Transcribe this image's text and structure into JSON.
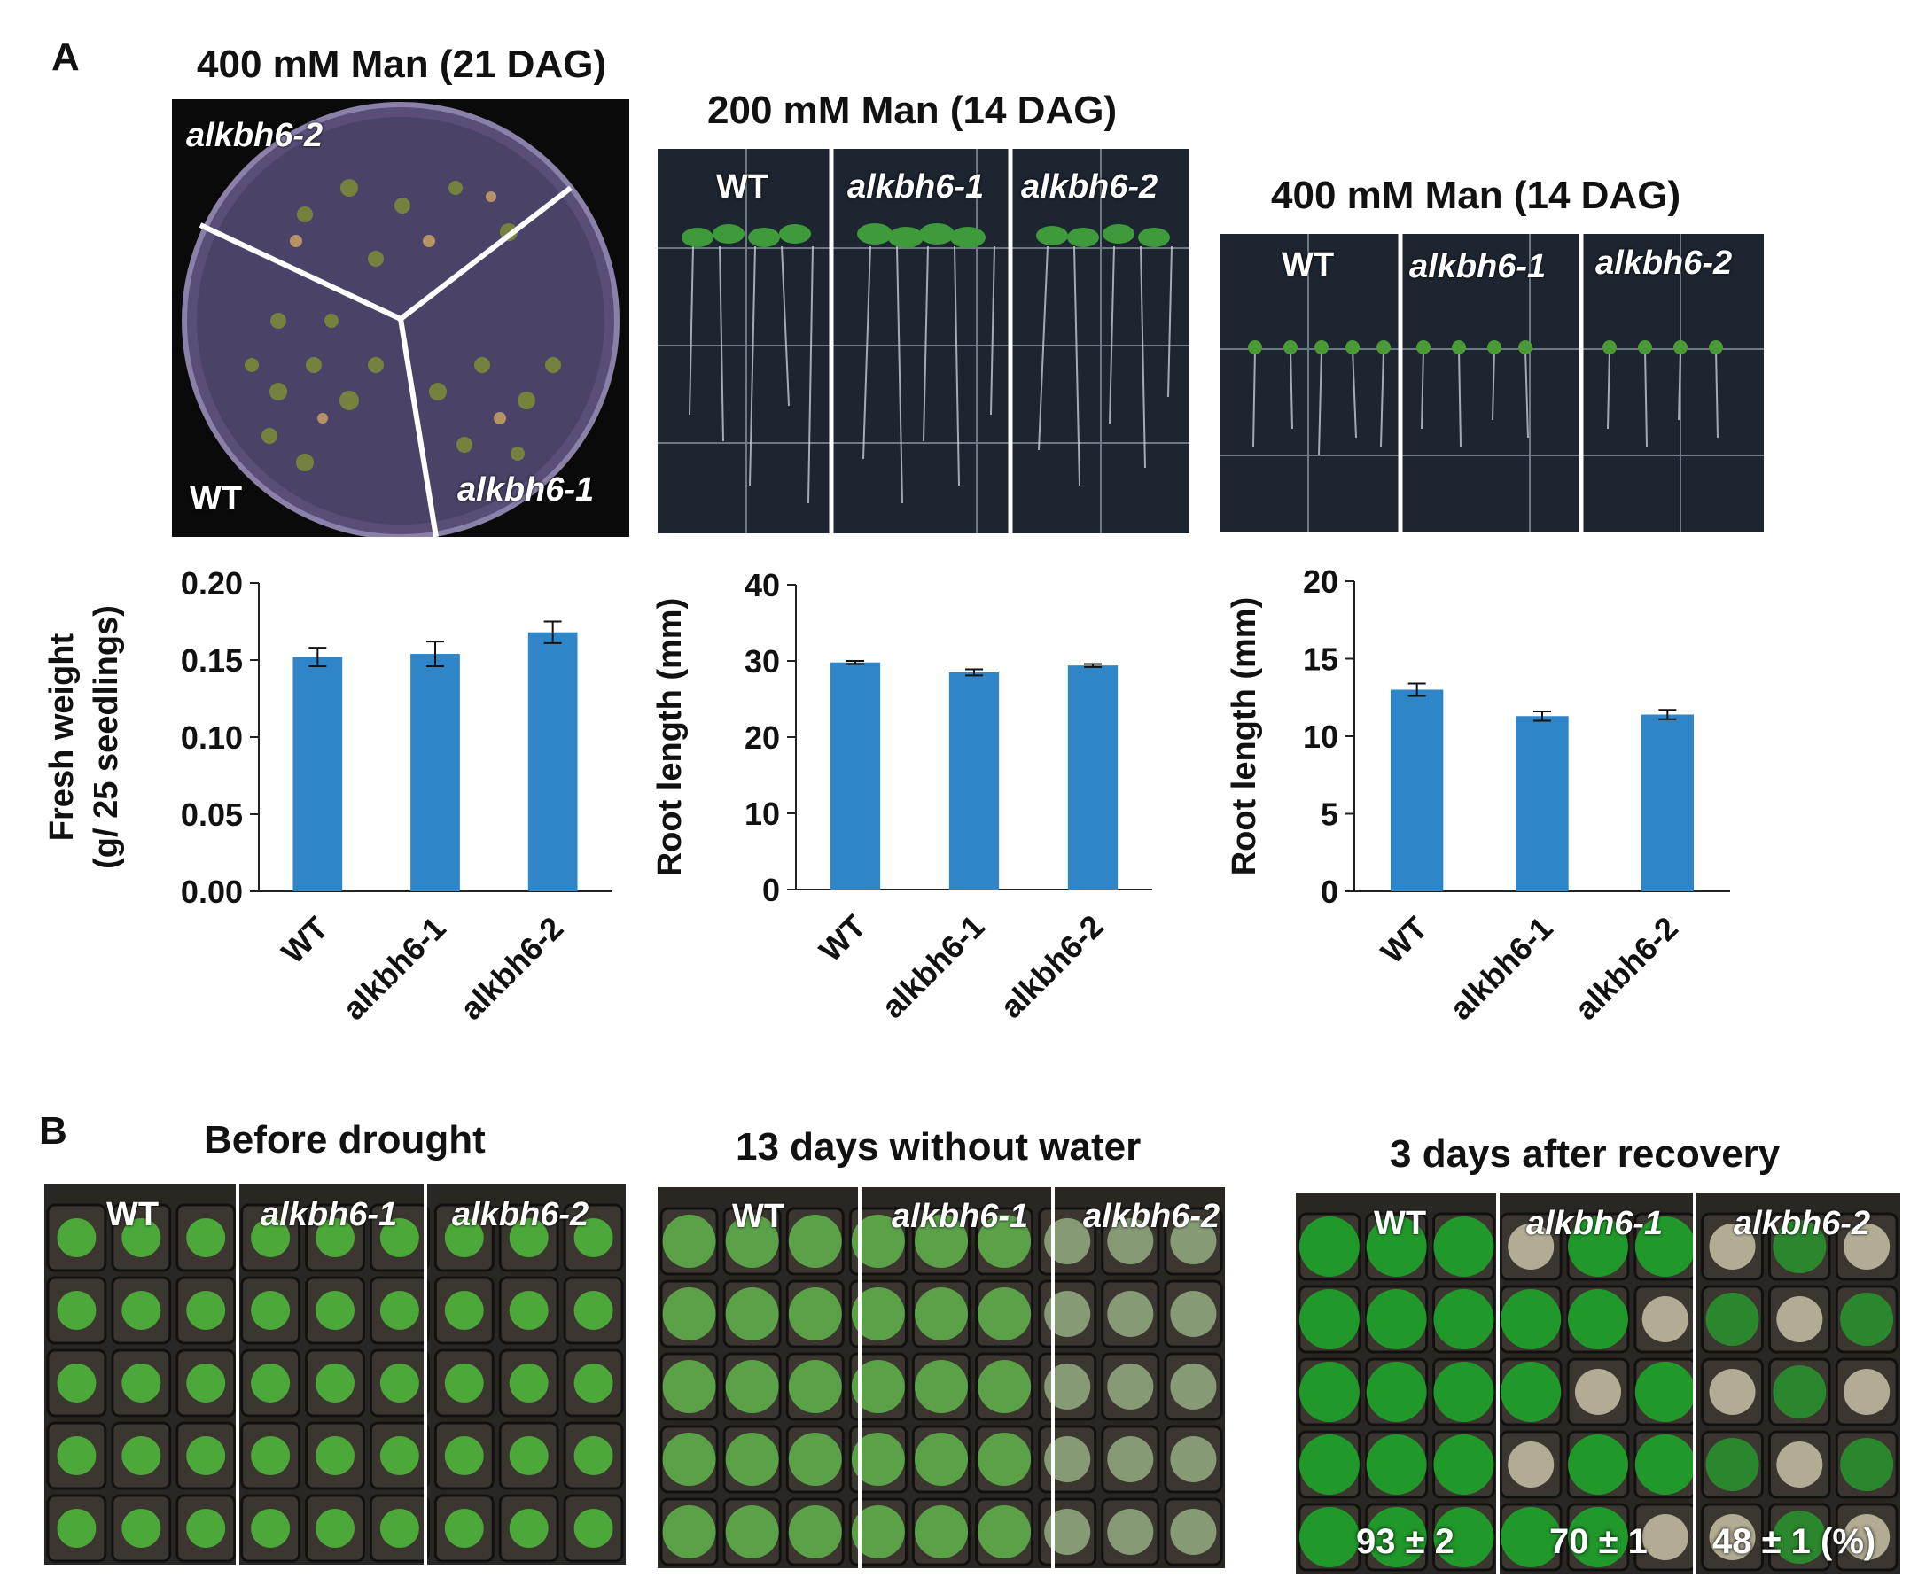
{
  "panel_a": {
    "letter": "A",
    "photos": [
      {
        "title": "400 mM Man (21 DAG)",
        "labels": [
          "alkbh6-2",
          "WT",
          "alkbh6-1"
        ]
      },
      {
        "title": "200 mM Man (14 DAG)",
        "labels": [
          "WT",
          "alkbh6-1",
          "alkbh6-2"
        ]
      },
      {
        "title": "400 mM Man (14 DAG)",
        "labels": [
          "WT",
          "alkbh6-1",
          "alkbh6-2"
        ]
      }
    ]
  },
  "chart_data": [
    {
      "type": "bar",
      "categories": [
        "WT",
        "alkbh6-1",
        "alkbh6-2"
      ],
      "values": [
        0.152,
        0.154,
        0.168
      ],
      "errors": [
        0.006,
        0.008,
        0.007
      ],
      "ylabel": "Fresh weight\n(g/ 25 seedlings)",
      "ylabel_lines": [
        "Fresh weight",
        "(g/ 25 seedlings)"
      ],
      "ylim": [
        0,
        0.2
      ],
      "yticks": [
        "0.00",
        "0.05",
        "0.10",
        "0.15",
        "0.20"
      ],
      "color": "#2e86c8"
    },
    {
      "type": "bar",
      "categories": [
        "WT",
        "alkbh6-1",
        "alkbh6-2"
      ],
      "values": [
        29.8,
        28.5,
        29.4
      ],
      "errors": [
        0.2,
        0.4,
        0.2
      ],
      "ylabel": "Root length (mm)",
      "ylabel_lines": [
        "Root length (mm)"
      ],
      "ylim": [
        0,
        40
      ],
      "yticks": [
        "0",
        "10",
        "20",
        "30",
        "40"
      ],
      "color": "#2e86c8"
    },
    {
      "type": "bar",
      "categories": [
        "WT",
        "alkbh6-1",
        "alkbh6-2"
      ],
      "values": [
        13.0,
        11.3,
        11.4
      ],
      "errors": [
        0.4,
        0.3,
        0.3
      ],
      "ylabel": "Root length (mm)",
      "ylabel_lines": [
        "Root length (mm)"
      ],
      "ylim": [
        0,
        20
      ],
      "yticks": [
        "0",
        "5",
        "10",
        "15",
        "20"
      ],
      "color": "#2e86c8"
    }
  ],
  "panel_b": {
    "letter": "B",
    "photos": [
      {
        "title": "Before drought",
        "labels": [
          "WT",
          "alkbh6-1",
          "alkbh6-2"
        ]
      },
      {
        "title": "13 days without water",
        "labels": [
          "WT",
          "alkbh6-1",
          "alkbh6-2"
        ]
      },
      {
        "title": "3 days after recovery",
        "labels": [
          "WT",
          "alkbh6-1",
          "alkbh6-2"
        ],
        "stats": [
          "93 ± 2",
          "70 ± 1",
          "48 ± 1 (%)"
        ]
      }
    ]
  }
}
